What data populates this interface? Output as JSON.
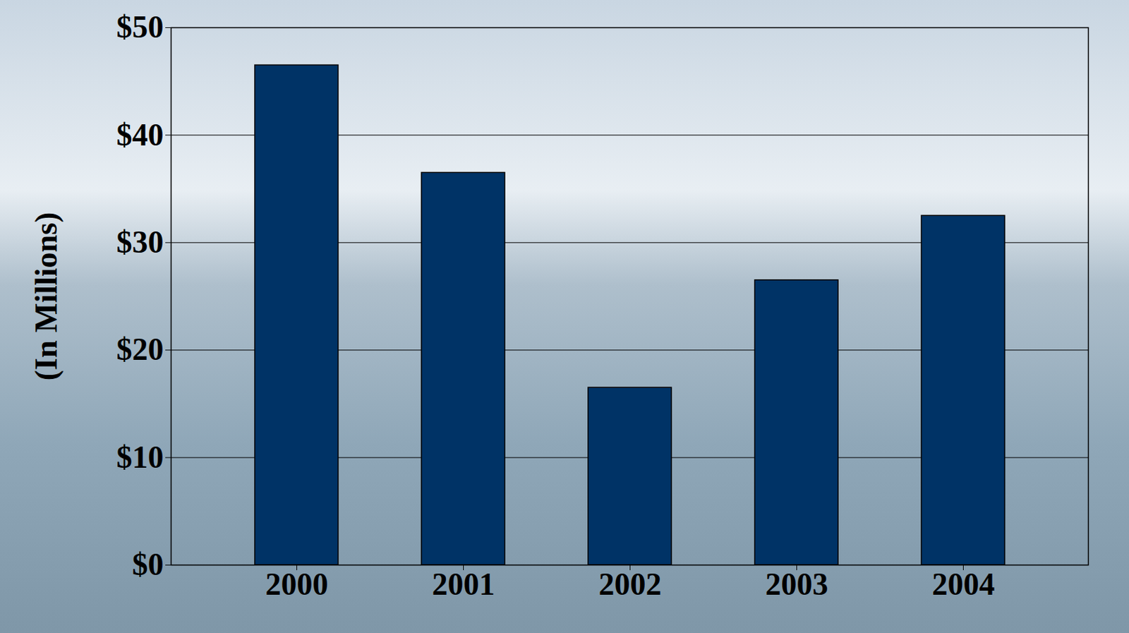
{
  "chart_data": {
    "type": "bar",
    "categories": [
      "2000",
      "2001",
      "2002",
      "2003",
      "2004"
    ],
    "values": [
      46.5,
      36.5,
      16.5,
      26.5,
      32.5
    ],
    "color": "#003366",
    "y_label": "(In Millions)",
    "ylim": [
      0,
      50
    ],
    "yticks": [
      {
        "value": 0,
        "label": "$0"
      },
      {
        "value": 10,
        "label": "$10"
      },
      {
        "value": 20,
        "label": "$20"
      },
      {
        "value": 30,
        "label": "$30"
      },
      {
        "value": 40,
        "label": "$40"
      },
      {
        "value": 50,
        "label": "$50"
      }
    ],
    "grid": true
  }
}
